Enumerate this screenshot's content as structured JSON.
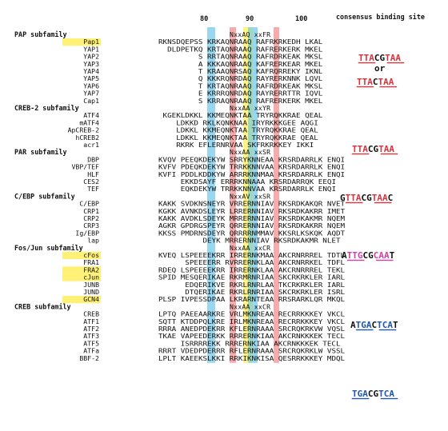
{
  "header": {
    "ticks": [
      "80",
      "90",
      "100"
    ],
    "consensus_title": "consensus binding site"
  },
  "colors": {
    "highlight_name": "#fff176",
    "band_blue": "#8ed3ee",
    "band_red": "#f5a3a3",
    "band_yellow": "#fff27a",
    "band_green": "#95d3b2",
    "motif_red": "#d8323c",
    "motif_blue": "#2156a8",
    "motif_magenta": "#d23fa8",
    "text": "#111111"
  },
  "families": [
    {
      "title": "PAP subfamily",
      "motif": "NxxAQ xxFR",
      "rows": [
        {
          "name": "Pap1",
          "hl": true,
          "seq": "RKNSDQEPSS KRKAQNRAAQ RAFRKRKEDH LKAL"
        },
        {
          "name": "YAP1",
          "hl": false,
          "seq": "  DLDPETKQ KRTAQNRAAQ RAFRERKERK MKEL"
        },
        {
          "name": "YAP2",
          "hl": false,
          "seq": "         S RRTAQNRAAQ RAFRDRKEAK MKSL"
        },
        {
          "name": "YAP3",
          "hl": false,
          "seq": "         A KKKAQNRAAQ KAFRERKEAR MKEL"
        },
        {
          "name": "YAP4",
          "hl": false,
          "seq": "         T KRAAQNRSAQ KAFRQRREKY IKNL"
        },
        {
          "name": "YAP5",
          "hl": false,
          "seq": "         Q KKKRQNRDAQ RAYRERKNNK LQVL"
        },
        {
          "name": "YAP6",
          "hl": false,
          "seq": "         T KRTAQNRAAQ RAFRDRKEAK MKSL"
        },
        {
          "name": "YAP7",
          "hl": false,
          "seq": "         E KRRRQNRDAQ RAYRERRTTR IQVL"
        },
        {
          "name": "Cap1",
          "hl": false,
          "seq": "         S KRRAQNRAAQ RAFRERKERK MKEL"
        }
      ]
    },
    {
      "title": "CREB-2 subfamily",
      "motif": "NxxAA xxYR",
      "rows": [
        {
          "name": "ATF4",
          "hl": false,
          "seq": " KGEKLDKKL KKMEQNKTAA TRYRQKKRAE QEAL"
        },
        {
          "name": "mATF4",
          "hl": false,
          "seq": "    LDKKD RKLKQNKNAA IRYRKKKGEE AQGI"
        },
        {
          "name": "ApCREB-2",
          "hl": false,
          "seq": "    LDKKL KKMEQNKTAA TRYRQKKRAE QEAL"
        },
        {
          "name": "hCREB2",
          "hl": false,
          "seq": "    LDKKL KKMEQNKTAA TRYRQKKRAE QEAL"
        },
        {
          "name": "acr1",
          "hl": false,
          "seq": "    RKRK EFLERNRVAA SKFRKRKKEY IKKI"
        }
      ]
    },
    {
      "title": "PAR subfamily",
      "motif": "NxxAA xxSR",
      "rows": [
        {
          "name": "DBP",
          "hl": false,
          "seq": "KVQV PEEQKDEKYW SRRYKNNEAA KRSRDARRLK ENQI"
        },
        {
          "name": "VBP/TEF",
          "hl": false,
          "seq": "KVFV PDEQKDEKYW TRRKKNNVAA KRSRDARRLK ENQI"
        },
        {
          "name": "HLF",
          "hl": false,
          "seq": "KVFI PDDLKDDKYW ARRRKNNMAA KRSRDARRLK ENQI"
        },
        {
          "name": "CES2",
          "hl": false,
          "seq": "     EKKDSAYF ERRRKNNAAA KRSRDARRQK EEQI"
        },
        {
          "name": "TEF",
          "hl": false,
          "seq": "     EQKDEKYW TRRKKNNVAA KRSRDARRLK ENQI"
        }
      ]
    },
    {
      "title": "C/EBP subfamily",
      "motif": "NxxAV xxSR",
      "rows": [
        {
          "name": "C/EBP",
          "hl": false,
          "seq": "KAKK SVDKNSNEYR VRRERNNIAV RKSRDKAKQR NVET"
        },
        {
          "name": "CRP1",
          "hl": false,
          "seq": "KGKK AVNKDSLEYR LRRERNNIAV RKSRDKAKRR IMET"
        },
        {
          "name": "CRP2",
          "hl": false,
          "seq": "KAKK AVDKLSDEYK MRRERNNIAV RKSRDKAKMR NQEM"
        },
        {
          "name": "CRP3",
          "hl": false,
          "seq": "AGKR GPDRGSPEYR QRRERNNIAV RKSRDKAKRR NQEM"
        },
        {
          "name": "Ig/EBP",
          "hl": false,
          "seq": "KKSS PMDRNSDEYR QRRRRNMMAV KKSRLKSKQK AQDT"
        },
        {
          "name": "lap",
          "hl": false,
          "seq": "          DEYK MRRERNNIAV RKSRDKAKMR NLET"
        }
      ]
    },
    {
      "title": "Fos/Jun subfamily",
      "motif": "NxxAA xxCR",
      "rows": [
        {
          "name": "cFos",
          "hl": true,
          "seq": "KVEQ LSPEEEEKRR IRRERNKMAA AKCRNRRREL TDTL"
        },
        {
          "name": "FRA1",
          "hl": false,
          "seq": "      SPEEEERR RVRRERNKLAA AKCRNRRKEL TDFL"
        },
        {
          "name": "FRA2",
          "hl": true,
          "seq": "RDEQ LSPEEEEKRR IRRERNKLAA AKCRNRRREL TEKL"
        },
        {
          "name": "cJun",
          "hl": true,
          "seq": "SPID MESQERIKAE RKRMRNRIAA SKCRKRKLER IARL"
        },
        {
          "name": "JUNB",
          "hl": false,
          "seq": "      EDQERIKVE RKRLRNRLAA TKCRKRKLER IARL"
        },
        {
          "name": "JUND",
          "hl": false,
          "seq": "      DTQERIKAE RKRLRNRIAA SKCRKRKLER ISRL"
        },
        {
          "name": "GCN4",
          "hl": true,
          "seq": "PLSP IVPESSDPAA LKRARNTEAA RRSRARKLQR MKQL"
        }
      ]
    },
    {
      "title": "CREB subfamily",
      "motif": "NxxAA xxCR",
      "rows": [
        {
          "name": "CREB",
          "hl": false,
          "seq": "LPTQ PAEEAARKRE VRLMKNREAA RECRRKKKEY VKCL"
        },
        {
          "name": "ATF1",
          "hl": false,
          "seq": "SQTT KTDDPQLKRE IRLMKNREAA RECRRKKKEY VKCL"
        },
        {
          "name": "ATF2",
          "hl": false,
          "seq": "RRRA ANEDPDEKRR KFLERNRAAA SRCRQKRKVW VQSL"
        },
        {
          "name": "ATF3",
          "hl": false,
          "seq": "TKAE VAPEEDERKK RRRERNKIAA AKCRNKKKEK TECL"
        },
        {
          "name": "ATF5",
          "hl": false,
          "seq": "     ISRRRREKK RRRERNKIAA AKCRNKKKEK TECL"
        },
        {
          "name": "ATFa",
          "hl": false,
          "seq": "RRRT VDEDPDERRR RFLERNRAAA SRCRQKRKLW VSSL"
        },
        {
          "name": "BBF-2",
          "hl": false,
          "seq": "LPLT KAEEKSLKKI RRKIKNKISA QESRRKKKEY MDQL"
        }
      ]
    }
  ],
  "consensus": [
    {
      "label": "TTACGTAA",
      "colors": [
        "r",
        "r",
        "r",
        "k",
        "k",
        "r",
        "r",
        "r"
      ],
      "under": [
        1,
        1,
        1,
        0,
        0,
        1,
        1,
        1
      ]
    },
    {
      "label": "or",
      "colors": [
        "k",
        "k"
      ],
      "under": [
        0,
        0
      ]
    },
    {
      "label": "TTACTAA",
      "colors": [
        "r",
        "r",
        "r",
        "k",
        "r",
        "r",
        "r"
      ],
      "under": [
        1,
        1,
        1,
        0,
        1,
        1,
        1
      ]
    },
    {
      "label": "TTACGTAA",
      "colors": [
        "r",
        "r",
        "r",
        "k",
        "k",
        "r",
        "r",
        "r"
      ],
      "under": [
        1,
        1,
        1,
        0,
        0,
        1,
        1,
        1
      ]
    },
    {
      "label": "GTTACGTAAC",
      "colors": [
        "k",
        "r",
        "r",
        "r",
        "k",
        "k",
        "r",
        "r",
        "r",
        "k"
      ],
      "under": [
        0,
        1,
        1,
        1,
        0,
        0,
        1,
        1,
        1,
        0
      ]
    },
    {
      "label": "ATTGCGCAAT",
      "colors": [
        "k",
        "m",
        "m",
        "m",
        "k",
        "k",
        "m",
        "m",
        "m",
        "k"
      ],
      "under": [
        0,
        1,
        1,
        1,
        0,
        0,
        1,
        1,
        1,
        0
      ]
    },
    {
      "label": "ATGACTCAT",
      "colors": [
        "k",
        "b",
        "b",
        "b",
        "k",
        "b",
        "b",
        "b",
        "k"
      ],
      "under": [
        0,
        1,
        1,
        1,
        0,
        1,
        1,
        1,
        0
      ]
    },
    {
      "label": "TGACGTCA",
      "colors": [
        "b",
        "b",
        "b",
        "k",
        "k",
        "b",
        "b",
        "b"
      ],
      "under": [
        1,
        1,
        1,
        0,
        0,
        1,
        1,
        1
      ]
    }
  ]
}
